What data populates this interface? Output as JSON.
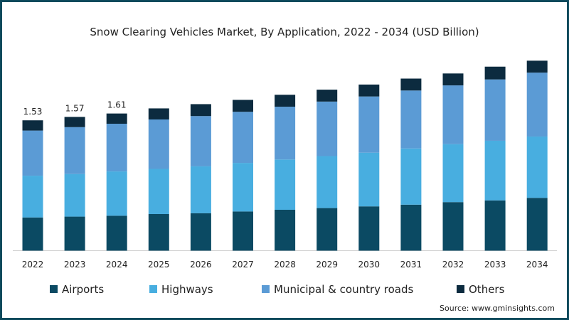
{
  "chart_data": {
    "type": "bar",
    "stacked": true,
    "title": "Snow Clearing Vehicles Market, By Application, 2022 - 2034 (USD Billion)",
    "xlabel": "",
    "ylabel": "",
    "ylim": [
      0,
      2.4
    ],
    "grid": false,
    "legend_position": "bottom",
    "categories": [
      "2022",
      "2023",
      "2024",
      "2025",
      "2026",
      "2027",
      "2028",
      "2029",
      "2030",
      "2031",
      "2032",
      "2033",
      "2034"
    ],
    "series": [
      {
        "name": "Airports",
        "color": "#0b4a63",
        "values": [
          0.39,
          0.4,
          0.41,
          0.43,
          0.44,
          0.46,
          0.48,
          0.5,
          0.52,
          0.54,
          0.57,
          0.59,
          0.62
        ]
      },
      {
        "name": "Highways",
        "color": "#48aee0",
        "values": [
          0.49,
          0.5,
          0.52,
          0.53,
          0.55,
          0.57,
          0.59,
          0.61,
          0.63,
          0.66,
          0.68,
          0.7,
          0.72
        ]
      },
      {
        "name": "Municipal & country roads",
        "color": "#5b9bd5",
        "values": [
          0.53,
          0.55,
          0.56,
          0.58,
          0.59,
          0.6,
          0.62,
          0.64,
          0.66,
          0.68,
          0.69,
          0.72,
          0.75
        ]
      },
      {
        "name": "Others",
        "color": "#0c2b3f",
        "values": [
          0.12,
          0.12,
          0.12,
          0.13,
          0.14,
          0.14,
          0.14,
          0.14,
          0.14,
          0.14,
          0.14,
          0.15,
          0.14
        ]
      }
    ],
    "data_labels": [
      {
        "category": "2022",
        "text": "1.53"
      },
      {
        "category": "2023",
        "text": "1.57"
      },
      {
        "category": "2024",
        "text": "1.61"
      }
    ],
    "source": "Source: www.gminsights.com"
  }
}
